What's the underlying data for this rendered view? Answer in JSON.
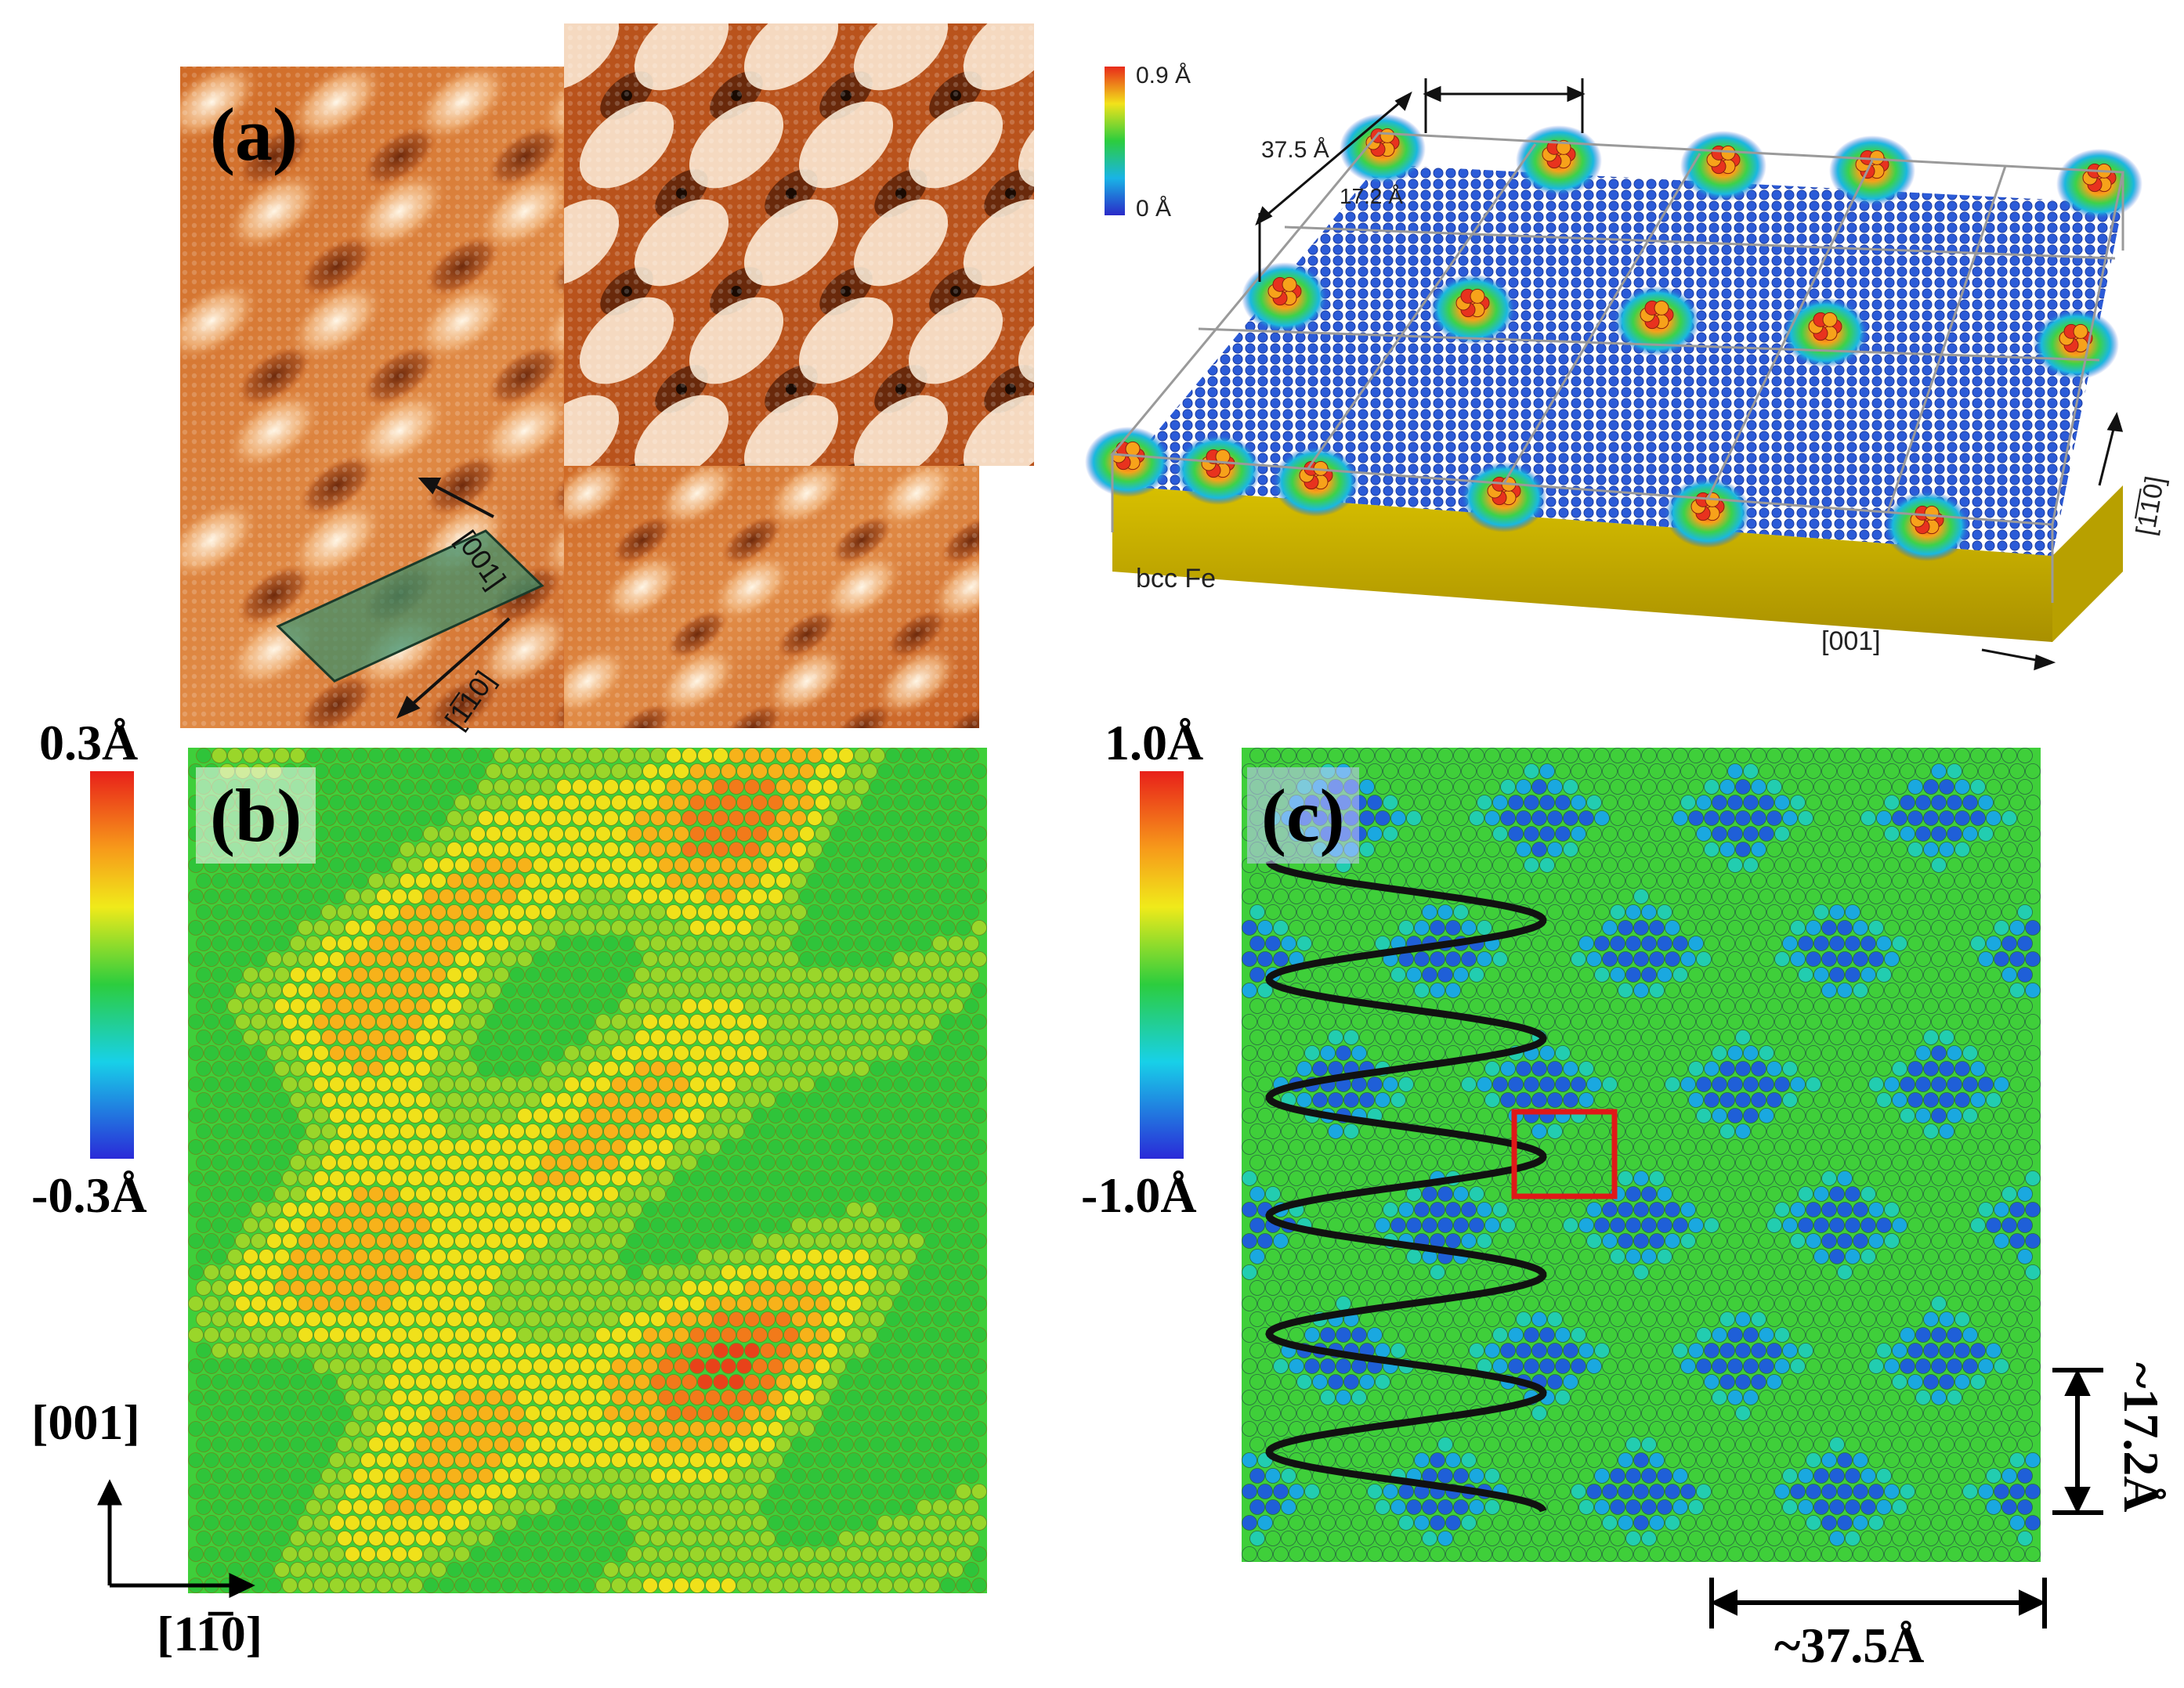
{
  "panel_a": {
    "label": "(a)",
    "dir_001": "[001]",
    "dir_110": "[1̅10]"
  },
  "panel_a3d": {
    "colorbar_max": "0.9 Å",
    "colorbar_min": "0 Å",
    "dim_long": "37.5 Å",
    "dim_short": "17.2 Å",
    "substrate": "bcc Fe",
    "axis_001": "[001]",
    "axis_110": "[1̅1̅0]"
  },
  "panel_b": {
    "label": "(b)",
    "colorbar_max": "0.3Å",
    "colorbar_min": "-0.3Å",
    "axis_up": "[001]",
    "axis_right": "[11̅0]"
  },
  "panel_c": {
    "label": "(c)",
    "colorbar_max": "1.0Å",
    "colorbar_min": "-1.0Å",
    "period_short": "~17.2Å",
    "period_long": "~37.5Å"
  },
  "colors": {
    "stm_dark": "#8a3a14",
    "stm_mid": "#d9782f",
    "stm_light": "#fbe3c3",
    "height_blue": "#1f3fb8",
    "height_green": "#2fc43a",
    "height_red": "#e8321e",
    "substrate_gold": "#c9b000"
  }
}
